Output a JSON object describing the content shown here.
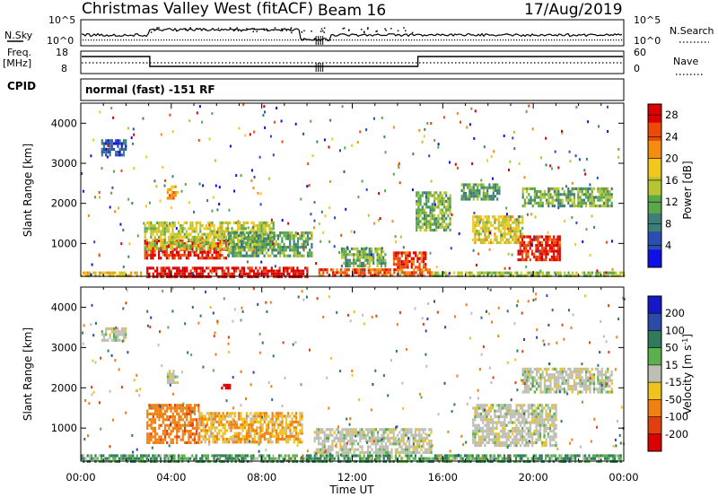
{
  "header": {
    "station": "Christmas Valley West (fitACF)",
    "beam": "Beam 16",
    "date": "17/Aug/2019"
  },
  "nsky_panel": {
    "left_label": "N.Sky",
    "left_ticks": [
      "10^5",
      "10^0"
    ],
    "right_ticks": [
      "10^5",
      "10^0"
    ],
    "right_label": "N.Search"
  },
  "freq_panel": {
    "left_label_1": "Freq.",
    "left_label_2": "[MHz]",
    "left_ticks": [
      "18",
      "8"
    ],
    "right_ticks": [
      "60",
      "0"
    ],
    "right_label": "Nave"
  },
  "cpid": {
    "label": "CPID",
    "value": "normal (fast) -151 RF"
  },
  "colors": {
    "power_scale": [
      "#1010e6",
      "#2a4fb0",
      "#3d7f78",
      "#5aa84a",
      "#b8c432",
      "#f2c81c",
      "#f48c12",
      "#ec4a0a",
      "#dc0000"
    ],
    "velocity_scale": [
      "#1418c8",
      "#2c4aa8",
      "#2e7a5a",
      "#5ab04a",
      "#bebeb4",
      "#f0c21c",
      "#f08010",
      "#e04010",
      "#dc0000"
    ]
  },
  "chart_data": [
    {
      "type": "heatmap",
      "name": "power",
      "ylabel": "Slant Range [km]",
      "xlabel": "Time UT",
      "x_ticks": [
        "00:00",
        "04:00",
        "08:00",
        "12:00",
        "16:00",
        "20:00",
        "00:00"
      ],
      "y_ticks": [
        "1000",
        "2000",
        "3000",
        "4000"
      ],
      "ylim": [
        180,
        4500
      ],
      "xlim_hours": [
        0,
        24
      ],
      "colorbar_label": "Power [dB]",
      "colorbar_ticks": [
        "4",
        "8",
        "12",
        "16",
        "20",
        "24",
        "28"
      ],
      "colorbar_range": [
        0,
        30
      ],
      "regions": [
        {
          "t0": 2.9,
          "t1": 10.0,
          "r0": 180,
          "r1": 420,
          "value": 29
        },
        {
          "t0": 10.5,
          "t1": 15.5,
          "r0": 180,
          "r1": 380,
          "value": 24
        },
        {
          "t0": 15.5,
          "t1": 24.0,
          "r0": 180,
          "r1": 300,
          "value": 14
        },
        {
          "t0": 0.0,
          "t1": 2.9,
          "r0": 180,
          "r1": 300,
          "value": 18
        },
        {
          "t0": 2.8,
          "t1": 6.5,
          "r0": 600,
          "r1": 1100,
          "value": 27
        },
        {
          "t0": 2.8,
          "t1": 8.5,
          "r0": 900,
          "r1": 1550,
          "value": 15
        },
        {
          "t0": 6.5,
          "t1": 10.2,
          "r0": 700,
          "r1": 1300,
          "value": 11
        },
        {
          "t0": 3.8,
          "t1": 4.3,
          "r0": 2150,
          "r1": 2450,
          "value": 21
        },
        {
          "t0": 0.9,
          "t1": 2.0,
          "r0": 3200,
          "r1": 3600,
          "value": 6
        },
        {
          "t0": 13.8,
          "t1": 15.2,
          "r0": 400,
          "r1": 800,
          "value": 26
        },
        {
          "t0": 11.5,
          "t1": 13.5,
          "r0": 450,
          "r1": 900,
          "value": 12
        },
        {
          "t0": 14.8,
          "t1": 16.3,
          "r0": 1300,
          "r1": 2300,
          "value": 13
        },
        {
          "t0": 17.3,
          "t1": 19.5,
          "r0": 1000,
          "r1": 1700,
          "value": 17
        },
        {
          "t0": 19.3,
          "t1": 21.2,
          "r0": 600,
          "r1": 1200,
          "value": 27
        },
        {
          "t0": 16.8,
          "t1": 18.5,
          "r0": 2100,
          "r1": 2500,
          "value": 11
        },
        {
          "t0": 19.5,
          "t1": 23.5,
          "r0": 1900,
          "r1": 2400,
          "value": 12
        }
      ]
    },
    {
      "type": "heatmap",
      "name": "velocity",
      "ylabel": "Slant Range [km]",
      "xlabel": "Time UT",
      "x_ticks": [
        "00:00",
        "04:00",
        "08:00",
        "12:00",
        "16:00",
        "20:00",
        "00:00"
      ],
      "y_ticks": [
        "1000",
        "2000",
        "3000",
        "4000"
      ],
      "ylim": [
        180,
        4500
      ],
      "xlim_hours": [
        0,
        24
      ],
      "colorbar_label": "Velocity [m s^-1]",
      "colorbar_ticks": [
        "200",
        "100",
        "50",
        "15",
        "-15",
        "-50",
        "-100",
        "-200"
      ],
      "regions": [
        {
          "t0": 2.9,
          "t1": 5.2,
          "r0": 650,
          "r1": 1600,
          "value": -60
        },
        {
          "t0": 5.2,
          "t1": 9.8,
          "r0": 650,
          "r1": 1400,
          "value": -30
        },
        {
          "t0": 0.0,
          "t1": 24.0,
          "r0": 180,
          "r1": 350,
          "value": 30
        },
        {
          "t0": 10.3,
          "t1": 15.5,
          "r0": 400,
          "r1": 1000,
          "value": 0
        },
        {
          "t0": 17.3,
          "t1": 21.0,
          "r0": 550,
          "r1": 1600,
          "value": 0
        },
        {
          "t0": 19.5,
          "t1": 23.5,
          "r0": 1900,
          "r1": 2500,
          "value": 0
        },
        {
          "t0": 0.9,
          "t1": 2.0,
          "r0": 3200,
          "r1": 3500,
          "value": 0
        },
        {
          "t0": 3.8,
          "t1": 4.3,
          "r0": 2150,
          "r1": 2450,
          "value": 0
        },
        {
          "t0": 6.2,
          "t1": 6.6,
          "r0": 2000,
          "r1": 2100,
          "value": -180
        }
      ]
    }
  ]
}
